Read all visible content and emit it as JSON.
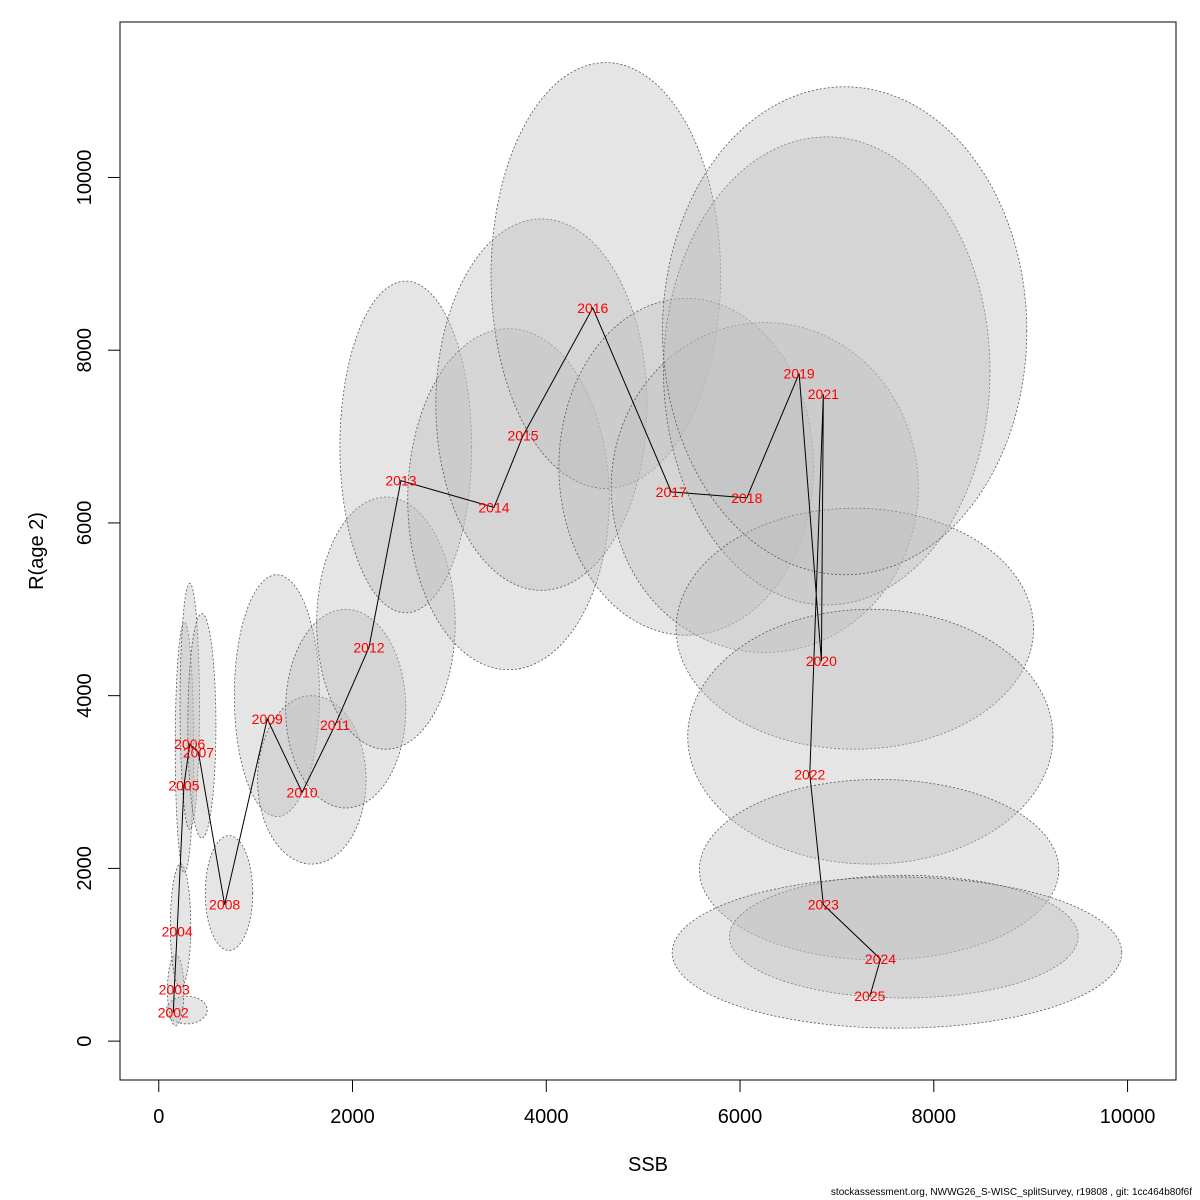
{
  "chart_data": {
    "type": "scatter",
    "title": "",
    "xlabel": "SSB",
    "ylabel": "R(age 2)",
    "xlim": [
      -400,
      10500
    ],
    "ylim": [
      -450,
      11800
    ],
    "xticks": [
      0,
      2000,
      4000,
      6000,
      8000,
      10000
    ],
    "yticks": [
      0,
      2000,
      4000,
      6000,
      8000,
      10000
    ],
    "grid": false,
    "colors": {
      "label": "#ff0000",
      "line": "#000000",
      "ellipse_fill": "#bebebe",
      "ellipse_stroke": "#555555"
    },
    "points": [
      {
        "label": "2002",
        "x": 150,
        "y": 330
      },
      {
        "label": "2003",
        "x": 160,
        "y": 600
      },
      {
        "label": "2004",
        "x": 190,
        "y": 1270
      },
      {
        "label": "2005",
        "x": 260,
        "y": 2960
      },
      {
        "label": "2006",
        "x": 320,
        "y": 3440
      },
      {
        "label": "2007",
        "x": 410,
        "y": 3340
      },
      {
        "label": "2008",
        "x": 680,
        "y": 1580
      },
      {
        "label": "2009",
        "x": 1120,
        "y": 3730
      },
      {
        "label": "2010",
        "x": 1480,
        "y": 2880
      },
      {
        "label": "2011",
        "x": 1820,
        "y": 3660
      },
      {
        "label": "2012",
        "x": 2170,
        "y": 4560
      },
      {
        "label": "2013",
        "x": 2500,
        "y": 6490
      },
      {
        "label": "2014",
        "x": 3460,
        "y": 6180
      },
      {
        "label": "2015",
        "x": 3760,
        "y": 7010
      },
      {
        "label": "2016",
        "x": 4480,
        "y": 8490
      },
      {
        "label": "2017",
        "x": 5290,
        "y": 6360
      },
      {
        "label": "2018",
        "x": 6070,
        "y": 6290
      },
      {
        "label": "2019",
        "x": 6610,
        "y": 7730
      },
      {
        "label": "2020",
        "x": 6840,
        "y": 4400
      },
      {
        "label": "2021",
        "x": 6860,
        "y": 7490
      },
      {
        "label": "2022",
        "x": 6720,
        "y": 3090
      },
      {
        "label": "2023",
        "x": 6860,
        "y": 1580
      },
      {
        "label": "2024",
        "x": 7450,
        "y": 950
      },
      {
        "label": "2025",
        "x": 7340,
        "y": 520
      }
    ],
    "confidence_ellipses": [
      {
        "label": "2002",
        "x_range": [
          80,
          500
        ],
        "y_range": [
          200,
          520
        ]
      },
      {
        "label": "2003",
        "x_range": [
          90,
          260
        ],
        "y_range": [
          180,
          1000
        ]
      },
      {
        "label": "2004",
        "x_range": [
          120,
          330
        ],
        "y_range": [
          620,
          2050
        ]
      },
      {
        "label": "2005",
        "x_range": [
          170,
          360
        ],
        "y_range": [
          1950,
          4850
        ]
      },
      {
        "label": "2006",
        "x_range": [
          220,
          420
        ],
        "y_range": [
          2450,
          5300
        ]
      },
      {
        "label": "2007",
        "x_range": [
          300,
          590
        ],
        "y_range": [
          2350,
          4950
        ]
      },
      {
        "label": "2008",
        "x_range": [
          480,
          970
        ],
        "y_range": [
          1050,
          2380
        ]
      },
      {
        "label": "2009",
        "x_range": [
          780,
          1660
        ],
        "y_range": [
          2600,
          5400
        ]
      },
      {
        "label": "2010",
        "x_range": [
          1020,
          2140
        ],
        "y_range": [
          2050,
          4000
        ]
      },
      {
        "label": "2011",
        "x_range": [
          1310,
          2550
        ],
        "y_range": [
          2700,
          5000
        ]
      },
      {
        "label": "2012",
        "x_range": [
          1630,
          3060
        ],
        "y_range": [
          3380,
          6300
        ]
      },
      {
        "label": "2013",
        "x_range": [
          1870,
          3230
        ],
        "y_range": [
          4960,
          8800
        ]
      },
      {
        "label": "2014",
        "x_range": [
          2570,
          4650
        ],
        "y_range": [
          4300,
          8250
        ]
      },
      {
        "label": "2015",
        "x_range": [
          2860,
          5040
        ],
        "y_range": [
          5220,
          9520
        ]
      },
      {
        "label": "2016",
        "x_range": [
          3430,
          5800
        ],
        "y_range": [
          6400,
          11330
        ]
      },
      {
        "label": "2017",
        "x_range": [
          4130,
          6760
        ],
        "y_range": [
          4700,
          8600
        ]
      },
      {
        "label": "2018",
        "x_range": [
          4670,
          7840
        ],
        "y_range": [
          4500,
          8320
        ]
      },
      {
        "label": "2019",
        "x_range": [
          5210,
          8580
        ],
        "y_range": [
          5050,
          10470
        ]
      },
      {
        "label": "2020",
        "x_range": [
          5340,
          9030
        ],
        "y_range": [
          3380,
          6170
        ]
      },
      {
        "label": "2021",
        "x_range": [
          5200,
          8960
        ],
        "y_range": [
          5400,
          11050
        ]
      },
      {
        "label": "2022",
        "x_range": [
          5460,
          9230
        ],
        "y_range": [
          2050,
          5000
        ]
      },
      {
        "label": "2023",
        "x_range": [
          5580,
          9290
        ],
        "y_range": [
          940,
          3030
        ]
      },
      {
        "label": "2024",
        "x_range": [
          5890,
          9490
        ],
        "y_range": [
          500,
          1920
        ]
      },
      {
        "label": "2025",
        "x_range": [
          5300,
          9940
        ],
        "y_range": [
          150,
          1900
        ]
      }
    ]
  },
  "footer": {
    "text": "stockassessment.org, NWWG26_S-WISC_splitSurvey, r19808 , git: 1cc464b80f6f"
  }
}
